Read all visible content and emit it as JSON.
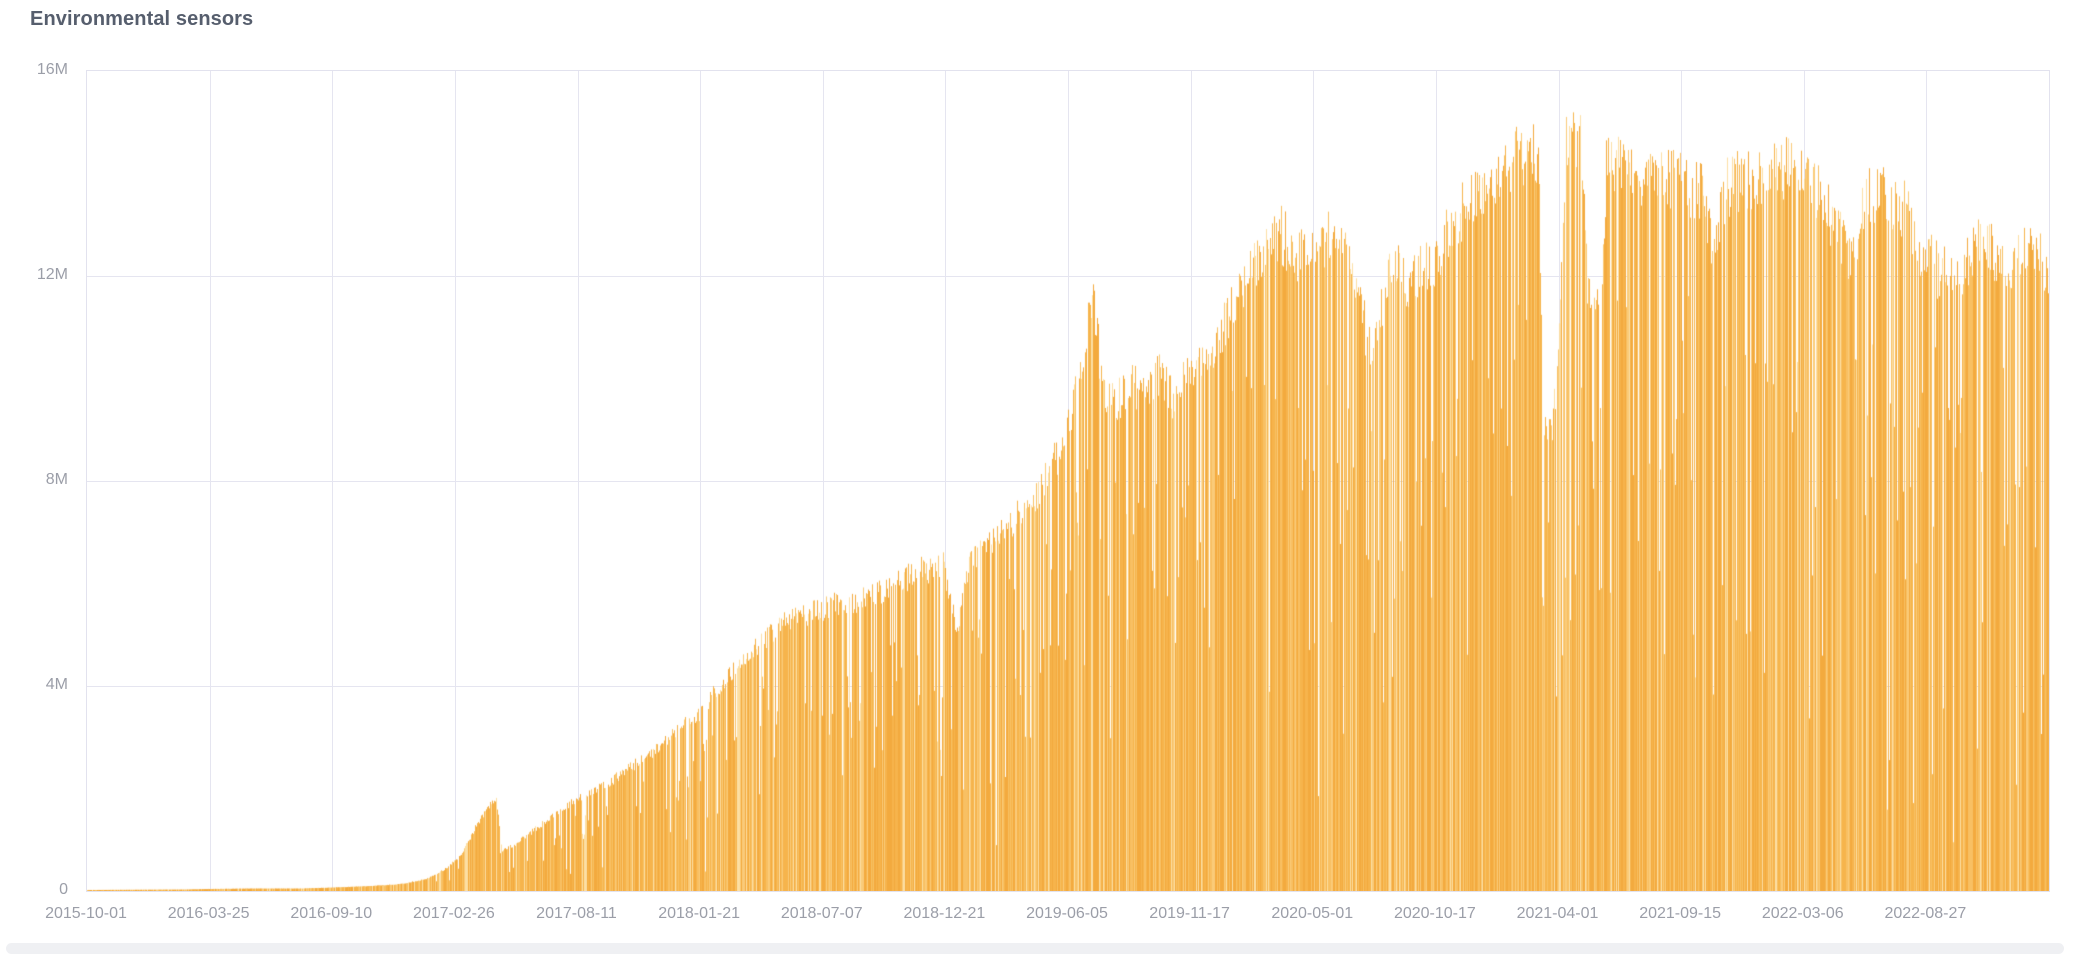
{
  "page": {
    "background_color": "#ffffff"
  },
  "chart_data": {
    "type": "bar",
    "title": "Environmental sensors",
    "xlabel": "",
    "ylabel": "",
    "unit": "rows (millions)",
    "ylim_millions": [
      0,
      16
    ],
    "grid": true,
    "legend": "none",
    "x_tick_labels": [
      "2015-10-01",
      "2016-03-25",
      "2016-09-10",
      "2017-02-26",
      "2017-08-11",
      "2018-01-21",
      "2018-07-07",
      "2018-12-21",
      "2019-06-05",
      "2019-11-17",
      "2020-05-01",
      "2020-10-17",
      "2021-04-01",
      "2021-09-15",
      "2022-03-06",
      "2022-08-27"
    ],
    "y_tick_labels": [
      "0",
      "4M",
      "8M",
      "12M",
      "16M"
    ],
    "y_tick_values_millions": [
      0,
      4,
      8,
      12,
      16
    ],
    "texture": "dense ~1px daily bars with frequent single-day dropout streaks",
    "envelope_points_frac_millions": [
      [
        0.0,
        0.02
      ],
      [
        0.0224,
        0.025
      ],
      [
        0.0479,
        0.03
      ],
      [
        0.0622,
        0.04
      ],
      [
        0.0836,
        0.05
      ],
      [
        0.1091,
        0.05
      ],
      [
        0.1249,
        0.07
      ],
      [
        0.1448,
        0.1
      ],
      [
        0.16,
        0.14
      ],
      [
        0.1728,
        0.24
      ],
      [
        0.183,
        0.45
      ],
      [
        0.1906,
        0.72
      ],
      [
        0.1983,
        1.3
      ],
      [
        0.2059,
        1.75
      ],
      [
        0.2085,
        1.85
      ],
      [
        0.2115,
        0.82
      ],
      [
        0.2187,
        0.95
      ],
      [
        0.2288,
        1.25
      ],
      [
        0.239,
        1.55
      ],
      [
        0.2497,
        1.85
      ],
      [
        0.2671,
        2.2
      ],
      [
        0.2875,
        2.75
      ],
      [
        0.3028,
        3.3
      ],
      [
        0.3119,
        3.55
      ],
      [
        0.3282,
        4.4
      ],
      [
        0.3435,
        5.0
      ],
      [
        0.3588,
        5.45
      ],
      [
        0.3741,
        5.65
      ],
      [
        0.3919,
        5.8
      ],
      [
        0.4098,
        6.1
      ],
      [
        0.4235,
        6.4
      ],
      [
        0.4368,
        6.5
      ],
      [
        0.4434,
        5.2
      ],
      [
        0.4495,
        6.6
      ],
      [
        0.4658,
        7.1
      ],
      [
        0.4842,
        8.0
      ],
      [
        0.499,
        9.0
      ],
      [
        0.5066,
        10.6
      ],
      [
        0.5132,
        12.0
      ],
      [
        0.5173,
        10.2
      ],
      [
        0.5219,
        9.7
      ],
      [
        0.5321,
        10.05
      ],
      [
        0.5474,
        10.3
      ],
      [
        0.5535,
        9.8
      ],
      [
        0.5612,
        10.5
      ],
      [
        0.5703,
        10.5
      ],
      [
        0.579,
        11.3
      ],
      [
        0.5882,
        12.0
      ],
      [
        0.5974,
        12.8
      ],
      [
        0.6086,
        13.15
      ],
      [
        0.6172,
        12.65
      ],
      [
        0.6249,
        12.7
      ],
      [
        0.6366,
        13.2
      ],
      [
        0.6453,
        12.4
      ],
      [
        0.6534,
        10.9
      ],
      [
        0.6585,
        11.4
      ],
      [
        0.6646,
        12.7
      ],
      [
        0.6723,
        12.2
      ],
      [
        0.6799,
        12.35
      ],
      [
        0.6876,
        12.6
      ],
      [
        0.6978,
        13.45
      ],
      [
        0.7095,
        13.9
      ],
      [
        0.7207,
        14.35
      ],
      [
        0.7309,
        14.75
      ],
      [
        0.7401,
        14.7
      ],
      [
        0.7426,
        9.2
      ],
      [
        0.7467,
        9.0
      ],
      [
        0.7503,
        10.8
      ],
      [
        0.7543,
        15.0
      ],
      [
        0.7574,
        15.25
      ],
      [
        0.7615,
        15.1
      ],
      [
        0.7651,
        12.1
      ],
      [
        0.7717,
        11.8
      ],
      [
        0.7747,
        14.6
      ],
      [
        0.7844,
        14.5
      ],
      [
        0.7971,
        14.3
      ],
      [
        0.8109,
        14.2
      ],
      [
        0.8226,
        14.0
      ],
      [
        0.8287,
        13.0
      ],
      [
        0.8364,
        14.1
      ],
      [
        0.8481,
        14.25
      ],
      [
        0.8634,
        14.4
      ],
      [
        0.8731,
        14.5
      ],
      [
        0.8828,
        13.9
      ],
      [
        0.8914,
        13.35
      ],
      [
        0.9006,
        12.6
      ],
      [
        0.9072,
        14.0
      ],
      [
        0.9169,
        13.9
      ],
      [
        0.9271,
        13.6
      ],
      [
        0.9358,
        12.8
      ],
      [
        0.9439,
        12.4
      ],
      [
        0.9562,
        12.45
      ],
      [
        0.9679,
        13.1
      ],
      [
        0.9756,
        12.5
      ],
      [
        0.9847,
        12.6
      ],
      [
        0.9908,
        13.15
      ],
      [
        1.0,
        12.35
      ]
    ],
    "annotations": {
      "spike_early_2017_millions": 1.85,
      "peak_2021_04_millions": 15.3,
      "data_gap_around_2021_04_drops_to_millions": 9.0,
      "right_edge_value_millions": 12.4
    }
  },
  "colors": {
    "bar_palette": [
      "#f3aa3e",
      "#f6b44c",
      "#f8c063",
      "#facb79",
      "#fcdfa4"
    ],
    "gridline": "#e5e5f0",
    "plot_border": "#e2e2ee",
    "axis_text": "#9b9ea8",
    "title_text": "#565e6d",
    "scrollbar_thumb": "#eff0f3"
  },
  "ui": {
    "horizontal_scrollbar": {
      "present": true
    }
  }
}
